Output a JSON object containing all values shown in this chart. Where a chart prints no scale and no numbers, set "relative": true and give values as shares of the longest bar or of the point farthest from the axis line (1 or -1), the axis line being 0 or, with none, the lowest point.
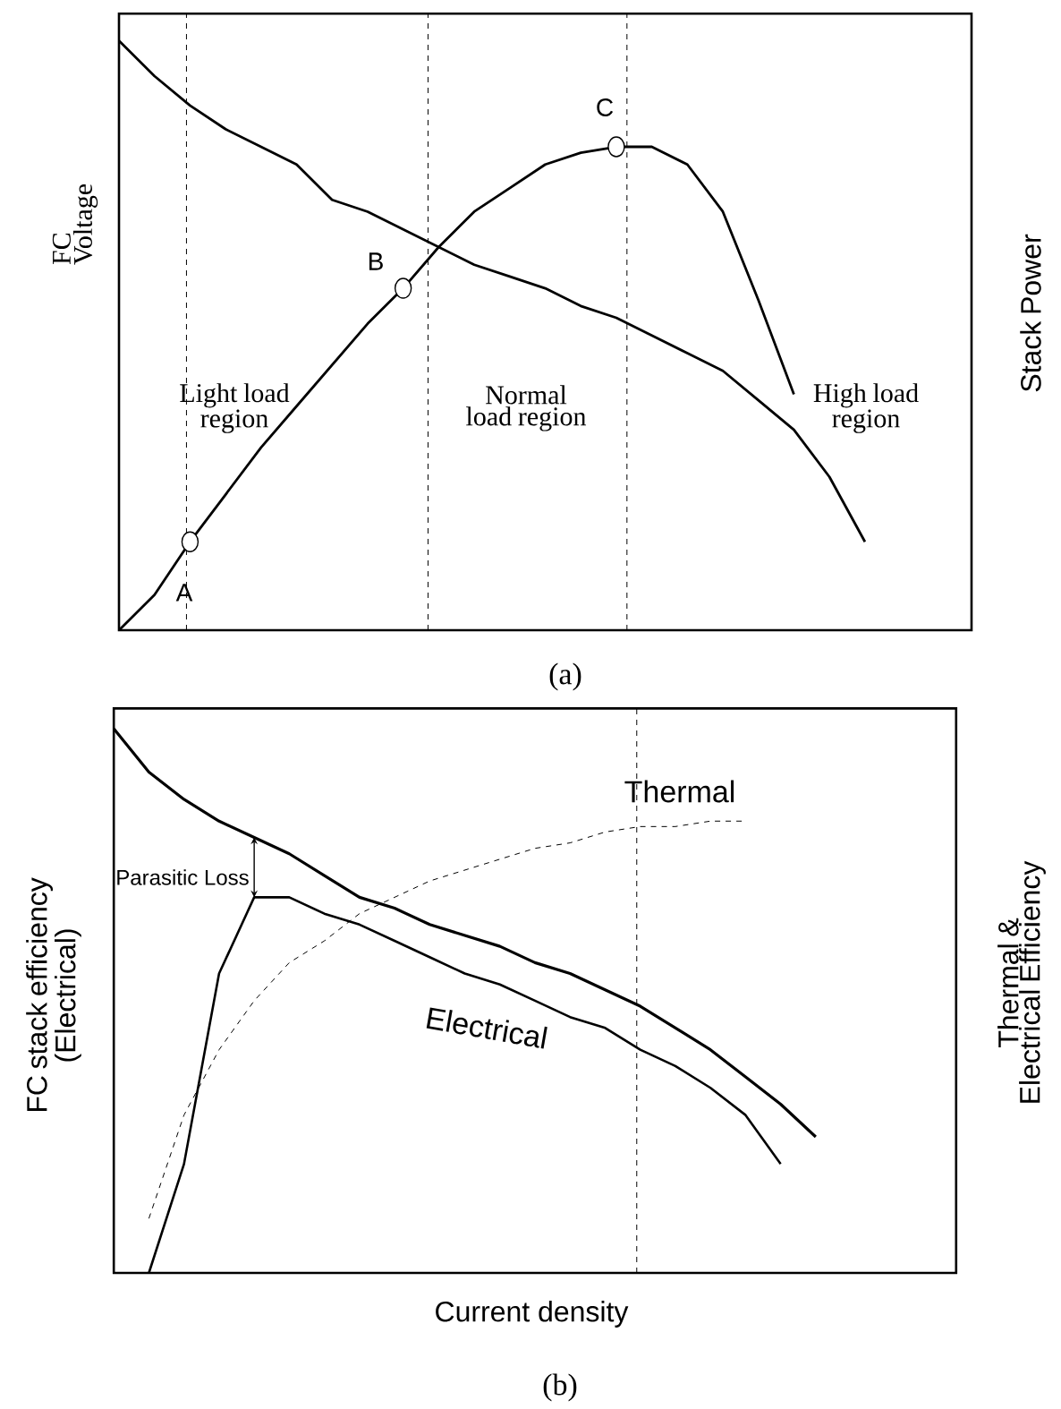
{
  "chart_data": [
    {
      "type": "line",
      "relative": true,
      "ylabel": "FC Voltage",
      "y2label": "Stack Power",
      "categories": [
        null,
        null,
        null,
        null,
        null,
        null,
        null,
        null,
        null,
        null,
        null,
        null,
        null,
        null,
        null,
        null,
        null,
        null,
        null,
        null,
        null,
        null,
        null,
        null,
        null
      ],
      "series": [
        {
          "color": "#000000",
          "values": [
            1.0,
            0.94,
            0.89,
            0.85,
            0.82,
            0.79,
            0.73,
            0.71,
            0.68,
            0.65,
            0.62,
            0.6,
            0.58,
            0.55,
            0.53,
            0.5,
            0.47,
            0.44,
            0.39,
            0.34,
            0.26,
            0.15,
            null,
            null,
            null
          ]
        },
        {
          "color": "#000000",
          "values": [
            0,
            0.06,
            0.15,
            0.23,
            0.31,
            0.38,
            0.45,
            0.52,
            0.58,
            0.65,
            0.71,
            0.75,
            0.79,
            0.81,
            0.82,
            0.82,
            0.79,
            0.71,
            0.56,
            0.4,
            null,
            null,
            null,
            null,
            null
          ]
        }
      ],
      "annotations": [
        "A",
        "B",
        "C",
        "Light load region",
        "Normal load region",
        "High load region",
        "(a)"
      ]
    },
    {
      "type": "line",
      "relative": true,
      "xlabel": "Current density",
      "ylabel": "FC stack efficiency (Electrical)",
      "y2label": "Thermal & Electrical Efficiency",
      "categories": [
        null,
        null,
        null,
        null,
        null,
        null,
        null,
        null,
        null,
        null,
        null,
        null,
        null,
        null,
        null,
        null,
        null,
        null,
        null,
        null,
        null,
        null,
        null,
        null,
        null
      ],
      "series": [
        {
          "color": "#000000",
          "values": [
            1.0,
            0.92,
            0.87,
            0.83,
            0.8,
            0.77,
            0.73,
            0.69,
            0.67,
            0.64,
            0.62,
            0.6,
            0.57,
            0.55,
            0.52,
            0.49,
            0.45,
            0.41,
            0.36,
            0.31,
            0.25,
            null,
            null,
            null,
            null
          ]
        },
        {
          "name": "Electrical",
          "color": "#000000",
          "values": [
            null,
            0,
            0.2,
            0.55,
            0.69,
            0.69,
            0.66,
            0.64,
            0.61,
            0.58,
            0.55,
            0.53,
            0.5,
            0.47,
            0.45,
            0.41,
            0.38,
            0.34,
            0.29,
            0.2,
            null,
            null,
            null,
            null,
            null
          ]
        },
        {
          "name": "Thermal",
          "color": "#000000",
          "line_style": "dashed",
          "values": [
            null,
            0.1,
            0.29,
            0.41,
            0.5,
            0.57,
            0.61,
            0.66,
            0.69,
            0.72,
            0.74,
            0.76,
            0.78,
            0.79,
            0.81,
            0.82,
            0.82,
            0.83,
            0.83,
            null,
            null,
            null,
            null,
            null,
            null
          ]
        }
      ],
      "annotations": [
        "Parasitic Loss",
        "(b)"
      ]
    }
  ]
}
